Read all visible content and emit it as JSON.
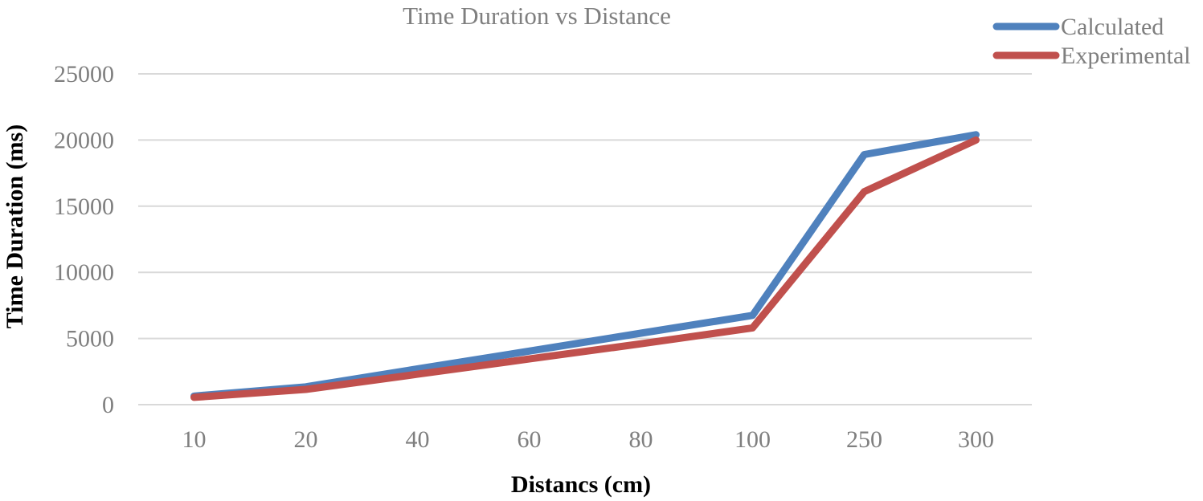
{
  "chart_data": {
    "type": "line",
    "title": "Time Duration vs Distance",
    "xlabel": "Distancs (cm)",
    "ylabel": "Time Duration (ms)",
    "categories": [
      "10",
      "20",
      "40",
      "60",
      "80",
      "100",
      "250",
      "300"
    ],
    "ylim": [
      0,
      25000
    ],
    "yticks": [
      "0",
      "5000",
      "10000",
      "15000",
      "20000",
      "25000"
    ],
    "ytick_values": [
      0,
      5000,
      10000,
      15000,
      20000,
      25000
    ],
    "grid": true,
    "legend_position": "top-right",
    "series": [
      {
        "name": "Calculated",
        "color": "#4f81bd",
        "values": [
          650,
          1350,
          2700,
          4050,
          5400,
          6750,
          18900,
          20400
        ]
      },
      {
        "name": "Experimental",
        "color": "#c0504d",
        "values": [
          550,
          1150,
          2300,
          3450,
          4600,
          5800,
          16100,
          20000
        ]
      }
    ]
  }
}
